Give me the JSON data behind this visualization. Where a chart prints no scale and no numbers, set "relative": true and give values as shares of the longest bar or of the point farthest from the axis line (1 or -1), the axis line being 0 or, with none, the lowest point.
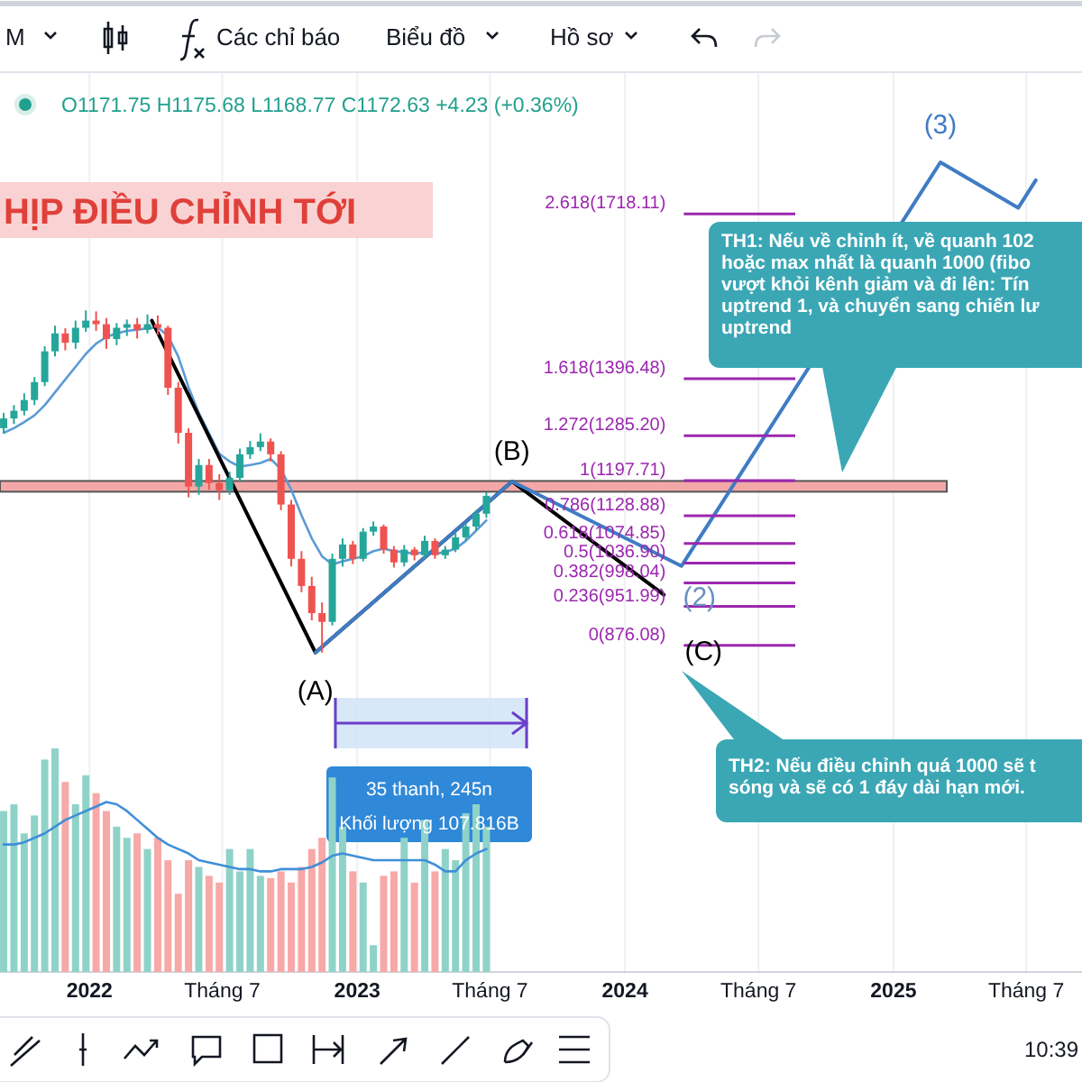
{
  "chart_data": [
    {
      "type": "candlestick",
      "title": "HỊP ĐIỀU CHỈNH TỚI",
      "x": [
        "2021-09-06",
        "2021-09-20",
        "2021-10-04",
        "2021-10-18",
        "2021-11-01",
        "2021-11-15",
        "2021-11-29",
        "2021-12-13",
        "2021-12-27",
        "2022-01-10",
        "2022-01-24",
        "2022-02-07",
        "2022-02-21",
        "2022-03-07",
        "2022-03-21",
        "2022-04-04",
        "2022-04-18",
        "2022-05-02",
        "2022-05-16",
        "2022-05-30",
        "2022-06-13",
        "2022-06-27",
        "2022-07-11",
        "2022-07-25",
        "2022-08-08",
        "2022-08-22",
        "2022-09-05",
        "2022-09-19",
        "2022-10-03",
        "2022-10-17",
        "2022-10-31",
        "2022-11-14",
        "2022-11-28",
        "2022-12-12",
        "2022-12-26",
        "2023-01-09",
        "2023-01-23",
        "2023-02-06",
        "2023-02-20",
        "2023-03-06",
        "2023-03-20",
        "2023-04-03",
        "2023-04-17",
        "2023-05-01",
        "2023-05-15",
        "2023-05-29",
        "2023-06-12",
        "2023-06-26"
      ],
      "ohlc": [
        [
          1300,
          1330,
          1290,
          1319
        ],
        [
          1319,
          1345,
          1308,
          1334
        ],
        [
          1334,
          1368,
          1325,
          1355
        ],
        [
          1355,
          1400,
          1345,
          1390
        ],
        [
          1390,
          1460,
          1382,
          1450
        ],
        [
          1450,
          1500,
          1440,
          1485
        ],
        [
          1485,
          1495,
          1452,
          1467
        ],
        [
          1467,
          1510,
          1455,
          1496
        ],
        [
          1496,
          1530,
          1488,
          1510
        ],
        [
          1510,
          1528,
          1490,
          1503
        ],
        [
          1503,
          1515,
          1455,
          1474
        ],
        [
          1474,
          1505,
          1462,
          1496
        ],
        [
          1496,
          1512,
          1480,
          1503
        ],
        [
          1503,
          1515,
          1475,
          1492
        ],
        [
          1492,
          1522,
          1485,
          1503
        ],
        [
          1503,
          1520,
          1482,
          1496
        ],
        [
          1496,
          1500,
          1365,
          1379
        ],
        [
          1379,
          1390,
          1270,
          1291
        ],
        [
          1291,
          1300,
          1165,
          1186
        ],
        [
          1186,
          1240,
          1170,
          1228
        ],
        [
          1228,
          1240,
          1180,
          1193
        ],
        [
          1193,
          1210,
          1160,
          1179
        ],
        [
          1179,
          1215,
          1170,
          1203
        ],
        [
          1203,
          1260,
          1195,
          1249
        ],
        [
          1249,
          1275,
          1240,
          1263
        ],
        [
          1263,
          1290,
          1255,
          1274
        ],
        [
          1274,
          1280,
          1235,
          1249
        ],
        [
          1249,
          1255,
          1140,
          1151
        ],
        [
          1151,
          1160,
          1030,
          1045
        ],
        [
          1045,
          1060,
          980,
          992
        ],
        [
          992,
          1010,
          925,
          939
        ],
        [
          939,
          960,
          862,
          922
        ],
        [
          922,
          1055,
          915,
          1045
        ],
        [
          1045,
          1085,
          1030,
          1073
        ],
        [
          1073,
          1080,
          1035,
          1045
        ],
        [
          1045,
          1105,
          1040,
          1098
        ],
        [
          1098,
          1118,
          1090,
          1108
        ],
        [
          1108,
          1112,
          1055,
          1063
        ],
        [
          1063,
          1070,
          1028,
          1038
        ],
        [
          1038,
          1072,
          1030,
          1063
        ],
        [
          1063,
          1068,
          1042,
          1052
        ],
        [
          1052,
          1090,
          1045,
          1080
        ],
        [
          1080,
          1085,
          1045,
          1052
        ],
        [
          1052,
          1070,
          1045,
          1063
        ],
        [
          1063,
          1095,
          1058,
          1087
        ],
        [
          1087,
          1115,
          1080,
          1108
        ],
        [
          1108,
          1140,
          1100,
          1133
        ],
        [
          1133,
          1175,
          1125,
          1168
        ]
      ],
      "colors": [
        "#26a69a",
        "#26a69a",
        "#26a69a",
        "#26a69a",
        "#26a69a",
        "#26a69a",
        "#ef5350",
        "#26a69a",
        "#26a69a",
        "#ef5350",
        "#ef5350",
        "#26a69a",
        "#26a69a",
        "#ef5350",
        "#26a69a",
        "#ef5350",
        "#ef5350",
        "#ef5350",
        "#ef5350",
        "#26a69a",
        "#ef5350",
        "#ef5350",
        "#26a69a",
        "#26a69a",
        "#26a69a",
        "#26a69a",
        "#ef5350",
        "#ef5350",
        "#ef5350",
        "#ef5350",
        "#ef5350",
        "#ef5350",
        "#26a69a",
        "#26a69a",
        "#ef5350",
        "#26a69a",
        "#26a69a",
        "#ef5350",
        "#ef5350",
        "#26a69a",
        "#ef5350",
        "#26a69a",
        "#ef5350",
        "#26a69a",
        "#26a69a",
        "#26a69a",
        "#26a69a",
        "#26a69a"
      ],
      "series": [
        {
          "type": "line",
          "color": "#5b9bd5",
          "values": [
            1291,
            1300,
            1312,
            1325,
            1345,
            1370,
            1395,
            1420,
            1445,
            1465,
            1478,
            1485,
            1490,
            1492,
            1495,
            1497,
            1480,
            1440,
            1380,
            1330,
            1290,
            1250,
            1235,
            1225,
            1228,
            1232,
            1240,
            1220,
            1180,
            1130,
            1085,
            1050,
            1034,
            1040,
            1045,
            1050,
            1060,
            1065,
            1060,
            1058,
            1055,
            1058,
            1055,
            1058,
            1065,
            1080,
            1100,
            1120
          ]
        },
        {
          "type": "line",
          "color": "#000000",
          "x": [
            "2022-03-27",
            "2022-11-05",
            "2023-07-31",
            "2024-02-23"
          ],
          "values": [
            1510,
            862,
            1196,
            975
          ]
        },
        {
          "type": "line",
          "color": "#3f7cc4",
          "x": [
            "2022-11-05",
            "2023-07-31",
            "2024-03-18",
            "2025-03-06",
            "2025-06-20",
            "2025-07-14"
          ],
          "values": [
            862,
            1196,
            1031,
            1819,
            1730,
            1784
          ]
        }
      ],
      "xlim": [
        "2021-09-01",
        "2025-09-15"
      ],
      "xticks": [
        {
          "value": "2022-01-01",
          "label": "2022"
        },
        {
          "value": "2022-07-01",
          "label": "Tháng 7"
        },
        {
          "value": "2023-01-01",
          "label": "2023"
        },
        {
          "value": "2023-07-01",
          "label": "Tháng 7"
        },
        {
          "value": "2024-01-01",
          "label": "2024"
        },
        {
          "value": "2024-07-01",
          "label": "Tháng 7"
        },
        {
          "value": "2025-01-01",
          "label": "2025"
        },
        {
          "value": "2025-07-01",
          "label": "Tháng 7"
        }
      ],
      "ylim": [
        235,
        1995
      ],
      "tick_labels": "x",
      "grid": "x",
      "ref_lines": [
        {
          "axis": "y",
          "value": 1718.11,
          "label": "2.618(1718.11)",
          "color": "#9c27b0"
        },
        {
          "axis": "y",
          "value": 1396.48,
          "label": "1.618(1396.48)",
          "color": "#9c27b0"
        },
        {
          "axis": "y",
          "value": 1285.2,
          "label": "1.272(1285.20)",
          "color": "#9c27b0"
        },
        {
          "axis": "y",
          "value": 1197.71,
          "label": "1(1197.71)",
          "color": "#9c27b0"
        },
        {
          "axis": "y",
          "value": 1128.88,
          "label": "0.786(1128.88)",
          "color": "#9c27b0"
        },
        {
          "axis": "y",
          "value": 1074.85,
          "label": "0.618(1074.85)",
          "color": "#9c27b0"
        },
        {
          "axis": "y",
          "value": 1036.9,
          "label": "0.5(1036.90)",
          "color": "#9c27b0"
        },
        {
          "axis": "y",
          "value": 998.04,
          "label": "0.382(998.04)",
          "color": "#9c27b0"
        },
        {
          "axis": "y",
          "value": 951.99,
          "label": "0.236(951.99)",
          "color": "#9c27b0"
        },
        {
          "axis": "y",
          "value": 876.08,
          "label": "0(876.08)",
          "color": "#9c27b0"
        }
      ],
      "bands": [
        {
          "axis": "y",
          "from": 1176,
          "to": 1197,
          "color": "#f4a7a7"
        }
      ],
      "annotations": [
        "O1171.75 H1175.68 L1168.77 C1172.63 +4.23 (+0.36%)",
        "M",
        "Các chỉ báo",
        "Biểu đồ",
        "Hồ sơ",
        "TH1: Nếu về chỉnh ít, về quanh 102\nhoặc max nhất là quanh 1000 (fibo\nvượt khỏi kênh giảm và đi lên: Tín\nuptrend 1, và chuyển sang chiến lư\nuptrend",
        "TH2: Nếu điều chỉnh quá 1000 sẽ t\nsóng và sẽ có 1 đáy dài hạn mới.",
        "35 thanh, 245n",
        "Khối lượng 107.816B",
        "10:39",
        {
          "text": "(A)",
          "x": "2022-11-05",
          "y": 862
        },
        {
          "text": "(B)",
          "x": "2023-07-31",
          "y": 1196
        },
        {
          "text": "(C)",
          "x": "2024-02-23",
          "y": 975
        },
        {
          "text": "(2)",
          "x": "2024-03-18",
          "y": 1031
        },
        {
          "text": "(3)",
          "x": "2025-03-06",
          "y": 1819
        }
      ]
    },
    {
      "type": "bar",
      "relative": true,
      "tick_labels": false,
      "x": [
        "2021-09-06",
        "2021-09-20",
        "2021-10-04",
        "2021-10-18",
        "2021-11-01",
        "2021-11-15",
        "2021-11-29",
        "2021-12-13",
        "2021-12-27",
        "2022-01-10",
        "2022-01-24",
        "2022-02-07",
        "2022-02-21",
        "2022-03-07",
        "2022-03-21",
        "2022-04-04",
        "2022-04-18",
        "2022-05-02",
        "2022-05-16",
        "2022-05-30",
        "2022-06-13",
        "2022-06-27",
        "2022-07-11",
        "2022-07-25",
        "2022-08-08",
        "2022-08-22",
        "2022-09-05",
        "2022-09-19",
        "2022-10-03",
        "2022-10-17",
        "2022-10-31",
        "2022-11-14",
        "2022-11-28",
        "2022-12-12",
        "2022-12-26",
        "2023-01-09",
        "2023-01-23",
        "2023-02-06",
        "2023-02-20",
        "2023-03-06",
        "2023-03-20",
        "2023-04-03",
        "2023-04-17",
        "2023-05-01",
        "2023-05-15",
        "2023-05-29",
        "2023-06-12",
        "2023-06-26"
      ],
      "xlim": [
        "2021-09-01",
        "2025-09-15"
      ],
      "series": [
        {
          "values": [
            0.72,
            0.75,
            0.62,
            0.7,
            0.95,
            1,
            0.85,
            0.75,
            0.88,
            0.8,
            0.72,
            0.65,
            0.6,
            0.62,
            0.55,
            0.6,
            0.5,
            0.35,
            0.5,
            0.47,
            0.43,
            0.4,
            0.55,
            0.45,
            0.55,
            0.43,
            0.42,
            0.45,
            0.4,
            0.47,
            0.55,
            0.6,
            0.87,
            0.65,
            0.45,
            0.4,
            0.12,
            0.43,
            0.45,
            0.6,
            0.4,
            0.68,
            0.45,
            0.55,
            0.5,
            0.71,
            0.75,
            0.65
          ],
          "colors": [
            "#8fd3c8",
            "#8fd3c8",
            "#8fd3c8",
            "#8fd3c8",
            "#8fd3c8",
            "#8fd3c8",
            "#f7a9a7",
            "#8fd3c8",
            "#8fd3c8",
            "#f7a9a7",
            "#f7a9a7",
            "#8fd3c8",
            "#8fd3c8",
            "#f7a9a7",
            "#8fd3c8",
            "#f7a9a7",
            "#f7a9a7",
            "#f7a9a7",
            "#f7a9a7",
            "#8fd3c8",
            "#f7a9a7",
            "#f7a9a7",
            "#8fd3c8",
            "#8fd3c8",
            "#8fd3c8",
            "#8fd3c8",
            "#f7a9a7",
            "#f7a9a7",
            "#f7a9a7",
            "#f7a9a7",
            "#f7a9a7",
            "#f7a9a7",
            "#8fd3c8",
            "#8fd3c8",
            "#f7a9a7",
            "#8fd3c8",
            "#8fd3c8",
            "#f7a9a7",
            "#f7a9a7",
            "#8fd3c8",
            "#f7a9a7",
            "#8fd3c8",
            "#f7a9a7",
            "#8fd3c8",
            "#8fd3c8",
            "#8fd3c8",
            "#8fd3c8",
            "#8fd3c8"
          ]
        },
        {
          "type": "line",
          "color": "#3f8fd8",
          "values": [
            0.57,
            0.57,
            0.58,
            0.6,
            0.62,
            0.65,
            0.68,
            0.7,
            0.72,
            0.74,
            0.76,
            0.75,
            0.72,
            0.68,
            0.64,
            0.6,
            0.57,
            0.55,
            0.53,
            0.5,
            0.49,
            0.48,
            0.47,
            0.46,
            0.46,
            0.45,
            0.45,
            0.46,
            0.46,
            0.46,
            0.47,
            0.49,
            0.52,
            0.53,
            0.52,
            0.51,
            0.5,
            0.5,
            0.5,
            0.5,
            0.5,
            0.5,
            0.48,
            0.45,
            0.45,
            0.5,
            0.53,
            0.55
          ]
        }
      ]
    }
  ]
}
